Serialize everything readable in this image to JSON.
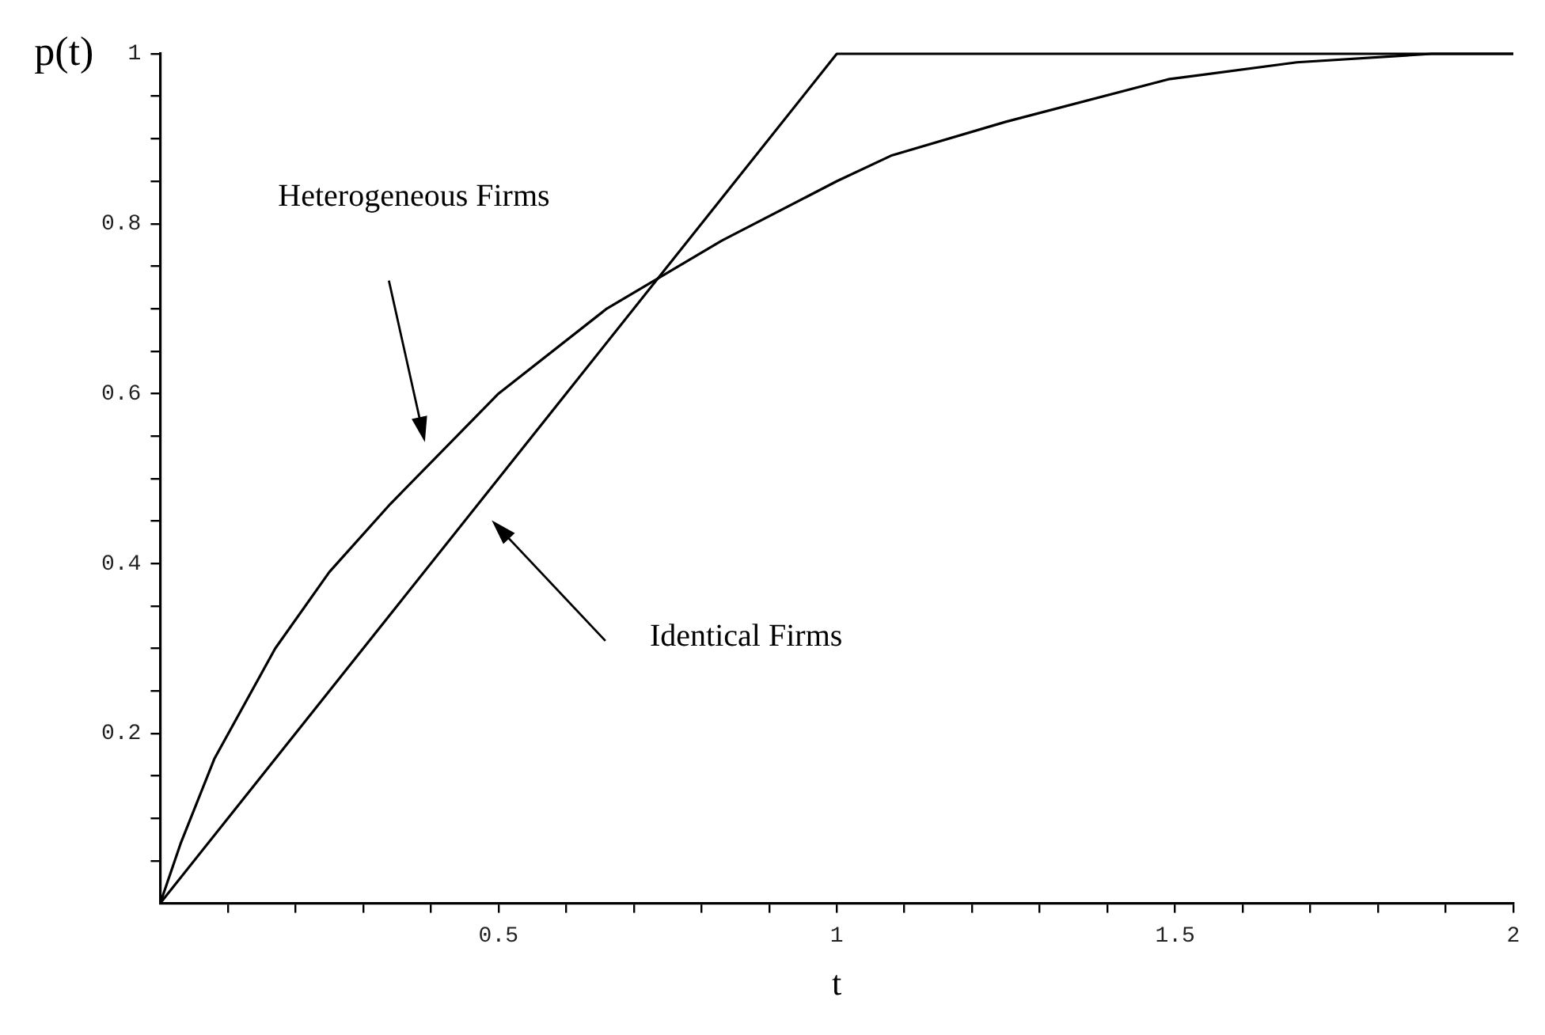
{
  "chart_data": {
    "type": "line",
    "xlabel": "t",
    "ylabel": "p(t)",
    "xlim": [
      0,
      2
    ],
    "ylim": [
      0,
      1
    ],
    "xticks": [
      {
        "value": 0.1,
        "label": null
      },
      {
        "value": 0.2,
        "label": null
      },
      {
        "value": 0.3,
        "label": null
      },
      {
        "value": 0.4,
        "label": null
      },
      0.5,
      {
        "value": 0.6,
        "label": null
      },
      {
        "value": 0.7,
        "label": null
      },
      {
        "value": 0.8,
        "label": null
      },
      {
        "value": 0.9,
        "label": null
      },
      1,
      {
        "value": 1.1,
        "label": null
      },
      {
        "value": 1.2,
        "label": null
      },
      {
        "value": 1.3,
        "label": null
      },
      {
        "value": 1.4,
        "label": null
      },
      1.5,
      {
        "value": 1.6,
        "label": null
      },
      {
        "value": 1.7,
        "label": null
      },
      {
        "value": 1.8,
        "label": null
      },
      {
        "value": 1.9,
        "label": null
      },
      2
    ],
    "yticks": [
      {
        "value": 0.05,
        "label": null
      },
      {
        "value": 0.1,
        "label": null
      },
      {
        "value": 0.15,
        "label": null
      },
      0.2,
      {
        "value": 0.25,
        "label": null
      },
      {
        "value": 0.3,
        "label": null
      },
      {
        "value": 0.35,
        "label": null
      },
      0.4,
      {
        "value": 0.45,
        "label": null
      },
      {
        "value": 0.5,
        "label": null
      },
      {
        "value": 0.55,
        "label": null
      },
      0.6,
      {
        "value": 0.65,
        "label": null
      },
      {
        "value": 0.7,
        "label": null
      },
      {
        "value": 0.75,
        "label": null
      },
      0.8,
      {
        "value": 0.85,
        "label": null
      },
      {
        "value": 0.9,
        "label": null
      },
      {
        "value": 0.95,
        "label": null
      },
      1
    ],
    "grid": false,
    "legend": false,
    "marker": "none",
    "line_style": "solid",
    "series": [
      {
        "color": "#000000",
        "x": [
          0,
          0.03,
          0.08,
          0.17,
          0.25,
          0.34,
          0.5,
          0.66,
          0.83,
          1.0,
          1.08,
          1.25,
          1.49,
          1.68,
          1.88,
          2
        ],
        "values": [
          0,
          0.07,
          0.17,
          0.3,
          0.39,
          0.47,
          0.6,
          0.7,
          0.78,
          0.85,
          0.88,
          0.92,
          0.97,
          0.99,
          1,
          1
        ]
      },
      {
        "color": "#000000",
        "x": [
          0,
          1,
          2
        ],
        "values": [
          0,
          1,
          1
        ]
      }
    ],
    "annotations": [
      "Heterogeneous Firms",
      "Identical Firms"
    ]
  }
}
